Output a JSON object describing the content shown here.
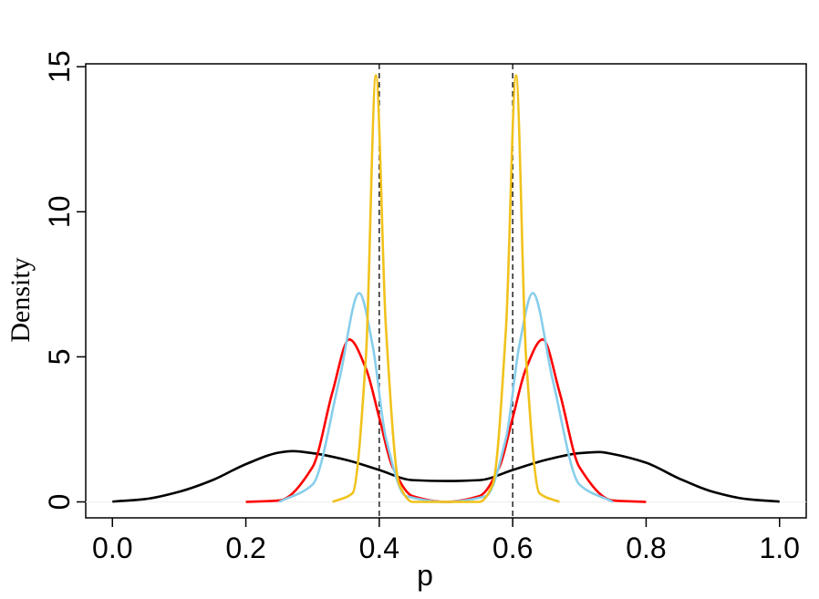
{
  "chart_data": {
    "type": "line",
    "title": "",
    "xlabel": "p",
    "ylabel": "Density",
    "xlim": [
      -0.04,
      1.04
    ],
    "ylim": [
      -0.55,
      15.1
    ],
    "x_ticks": [
      0.0,
      0.2,
      0.4,
      0.6,
      0.8,
      1.0
    ],
    "x_tick_labels": [
      "0.0",
      "0.2",
      "0.4",
      "0.6",
      "0.8",
      "1.0"
    ],
    "y_ticks": [
      0,
      5,
      10,
      15
    ],
    "y_tick_labels": [
      "0",
      "5",
      "10",
      "15"
    ],
    "reference_lines": [
      {
        "axis": "x",
        "value": 0.4,
        "style": "dashed",
        "color": "#000000"
      },
      {
        "axis": "x",
        "value": 0.6,
        "style": "dashed",
        "color": "#000000"
      }
    ],
    "grid": false,
    "series": [
      {
        "color": "#000000",
        "x": [
          0.0,
          0.05,
          0.1,
          0.15,
          0.2,
          0.25,
          0.27,
          0.3,
          0.35,
          0.4,
          0.45,
          0.5,
          0.55,
          0.6,
          0.65,
          0.7,
          0.73,
          0.75,
          0.8,
          0.85,
          0.9,
          0.95,
          1.0
        ],
        "y": [
          0.01,
          0.1,
          0.35,
          0.75,
          1.3,
          1.7,
          1.75,
          1.68,
          1.45,
          1.1,
          0.75,
          0.72,
          0.75,
          1.1,
          1.45,
          1.68,
          1.72,
          1.65,
          1.35,
          0.8,
          0.35,
          0.1,
          0.01
        ]
      },
      {
        "color": "#ff0000",
        "x": [
          0.2,
          0.25,
          0.3,
          0.33,
          0.355,
          0.38,
          0.4,
          0.42,
          0.45,
          0.5,
          0.55,
          0.58,
          0.6,
          0.62,
          0.645,
          0.67,
          0.7,
          0.75,
          0.8
        ],
        "y": [
          0.0,
          0.05,
          1.2,
          3.8,
          5.6,
          4.6,
          2.9,
          1.2,
          0.2,
          0.0,
          0.2,
          1.2,
          2.9,
          4.6,
          5.6,
          3.8,
          1.2,
          0.05,
          0.0
        ]
      },
      {
        "color": "#87ceeb",
        "x": [
          0.25,
          0.3,
          0.34,
          0.37,
          0.39,
          0.41,
          0.44,
          0.5,
          0.56,
          0.59,
          0.61,
          0.63,
          0.66,
          0.7,
          0.75
        ],
        "y": [
          0.0,
          0.6,
          4.2,
          7.2,
          5.4,
          2.2,
          0.2,
          0.0,
          0.2,
          2.2,
          5.4,
          7.2,
          4.2,
          0.6,
          0.0
        ]
      },
      {
        "color": "#f1c21b",
        "x": [
          0.33,
          0.36,
          0.38,
          0.395,
          0.41,
          0.43,
          0.45,
          0.5,
          0.55,
          0.57,
          0.59,
          0.605,
          0.62,
          0.64,
          0.67
        ],
        "y": [
          0.0,
          0.3,
          5.0,
          14.7,
          6.0,
          0.6,
          0.0,
          0.0,
          0.0,
          0.6,
          6.0,
          14.7,
          5.0,
          0.3,
          0.0
        ]
      }
    ]
  }
}
